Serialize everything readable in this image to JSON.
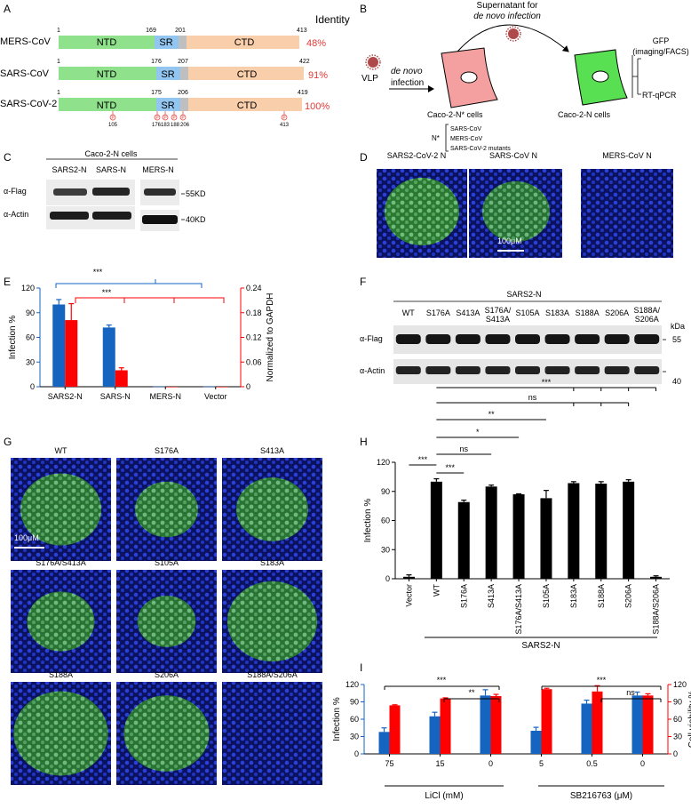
{
  "panels": {
    "A": {
      "letter": "A",
      "identity_header": "Identity",
      "domain_labels": {
        "ntd": "NTD",
        "sr": "SR",
        "ctd": "CTD"
      },
      "rows": [
        {
          "name": "MERS-CoV",
          "start": "1",
          "sr_start": "169",
          "sr_end": "201",
          "end": "413",
          "identity": "48%"
        },
        {
          "name": "SARS-CoV",
          "start": "1",
          "sr_start": "176",
          "sr_end": "207",
          "end": "422",
          "identity": "91%"
        },
        {
          "name": "SARS-CoV-2",
          "start": "1",
          "sr_start": "175",
          "sr_end": "206",
          "end": "419",
          "identity": "100%"
        }
      ],
      "phospho_symbol": "P",
      "sites": [
        "105",
        "176",
        "183",
        "188",
        "206",
        "413"
      ]
    },
    "B": {
      "letter": "B",
      "supernatant_line1": "Supernatant for",
      "supernatant_line2": "de novo infection",
      "vlp": "VLP",
      "infection_line1": "de novo",
      "infection_line2": "infection",
      "cell1_label": "Caco-2-N* cells",
      "nstar": "N*",
      "nstar_items": [
        "SARS-CoV",
        "MERS-CoV",
        "SARS-CoV-2 mutants"
      ],
      "cell2_label": "Caco-2-N cells",
      "readout1_line1": "GFP",
      "readout1_line2": "(imaging/FACS)",
      "readout2": "RT-qPCR",
      "colors": {
        "cell1": "#f4a0a0",
        "cell2": "#58e052",
        "virus": "#b04a4a"
      }
    },
    "C": {
      "letter": "C",
      "header": "Caco-2-N cells",
      "lanes": [
        "SARS2-N",
        "SARS-N",
        "MERS-N"
      ],
      "rows": [
        "α-Flag",
        "α-Actin"
      ],
      "markers": [
        "55KD",
        "40KD"
      ]
    },
    "D": {
      "letter": "D",
      "titles": [
        "SARS2-CoV-2 N",
        "SARS-CoV N",
        "MERS-CoV N"
      ],
      "scalebar": "100μM"
    },
    "E": {
      "letter": "E",
      "significance": [
        "***",
        "***"
      ]
    },
    "F": {
      "letter": "F",
      "header": "SARS2-N",
      "lanes": [
        "WT",
        "S176A",
        "S413A",
        "S176A/S413A",
        "S105A",
        "S183A",
        "S188A",
        "S206A",
        "S188A/S206A"
      ],
      "rows": [
        "α-Flag",
        "α-Actin"
      ],
      "kda": "kDa",
      "markers": [
        "55",
        "40"
      ]
    },
    "G": {
      "letter": "G",
      "titles": [
        "WT",
        "S176A",
        "S413A",
        "S176A/S413A",
        "S105A",
        "S183A",
        "S188A",
        "S206A",
        "S188A/S206A"
      ],
      "scalebar": "100μM"
    },
    "H": {
      "letter": "H",
      "significance": [
        "***",
        "ns",
        "**",
        "*",
        "ns",
        "***",
        "***"
      ],
      "group_label": "SARS2-N"
    },
    "I": {
      "letter": "I",
      "significance": [
        "***",
        "**",
        "***",
        "ns"
      ],
      "group_labels": [
        "LiCl (mM)",
        "SB216763 (μM)"
      ]
    }
  },
  "chart_data": [
    {
      "panel": "E",
      "type": "bar",
      "categories": [
        "SARS2-N",
        "SARS-N",
        "MERS-N",
        "Vector"
      ],
      "ylabel": "Infection %",
      "y2label": "Normalized to GAPDH",
      "ylim": [
        0,
        120
      ],
      "y2lim": [
        0,
        0.24
      ],
      "yticks": [
        "0",
        "30",
        "60",
        "90",
        "120"
      ],
      "y2ticks": [
        "0",
        "0.06",
        "0.12",
        "0.18",
        "0.24"
      ],
      "series": [
        {
          "axis": "left",
          "color": "#1565c0",
          "values": [
            100,
            72,
            0.3,
            0.3
          ],
          "errors": [
            6,
            3,
            0,
            0
          ]
        },
        {
          "axis": "right",
          "color": "#ff0000",
          "values": [
            0.162,
            0.04,
            0,
            0
          ],
          "errors": [
            0.04,
            0.006,
            0,
            0
          ]
        }
      ]
    },
    {
      "panel": "H",
      "type": "bar",
      "categories": [
        "Vector",
        "WT",
        "S176A",
        "S413A",
        "S176A/S413A",
        "S105A",
        "S183A",
        "S188A",
        "S206A",
        "S188A/S206A"
      ],
      "ylabel": "Infection %",
      "ylim": [
        0,
        120
      ],
      "yticks": [
        "0",
        "30",
        "60",
        "90",
        "120"
      ],
      "series": [
        {
          "color": "#000000",
          "values": [
            2,
            100,
            79,
            95,
            87,
            83,
            98.5,
            98,
            100,
            2
          ],
          "errors": [
            2,
            3,
            2,
            1.5,
            0.5,
            8,
            1.5,
            2,
            2,
            1
          ]
        }
      ]
    },
    {
      "panel": "I",
      "type": "bar",
      "categories": [
        "75",
        "15",
        "0",
        "5",
        "0.5",
        "0"
      ],
      "ylabel": "Infection %",
      "y2label": "Cell viability %",
      "ylim": [
        0,
        120
      ],
      "y2lim": [
        0,
        120
      ],
      "yticks": [
        "0",
        "30",
        "60",
        "90",
        "120"
      ],
      "y2ticks": [
        "0",
        "30",
        "60",
        "90",
        "120"
      ],
      "series": [
        {
          "axis": "left",
          "color": "#1565c0",
          "values": [
            38,
            65,
            101,
            40,
            87,
            101
          ],
          "errors": [
            7,
            7,
            10,
            6,
            6,
            6
          ]
        },
        {
          "axis": "right",
          "color": "#ff0000",
          "values": [
            84,
            96,
            100,
            112,
            108,
            101
          ],
          "errors": [
            1,
            1,
            3,
            1.5,
            10,
            3
          ]
        }
      ]
    }
  ]
}
